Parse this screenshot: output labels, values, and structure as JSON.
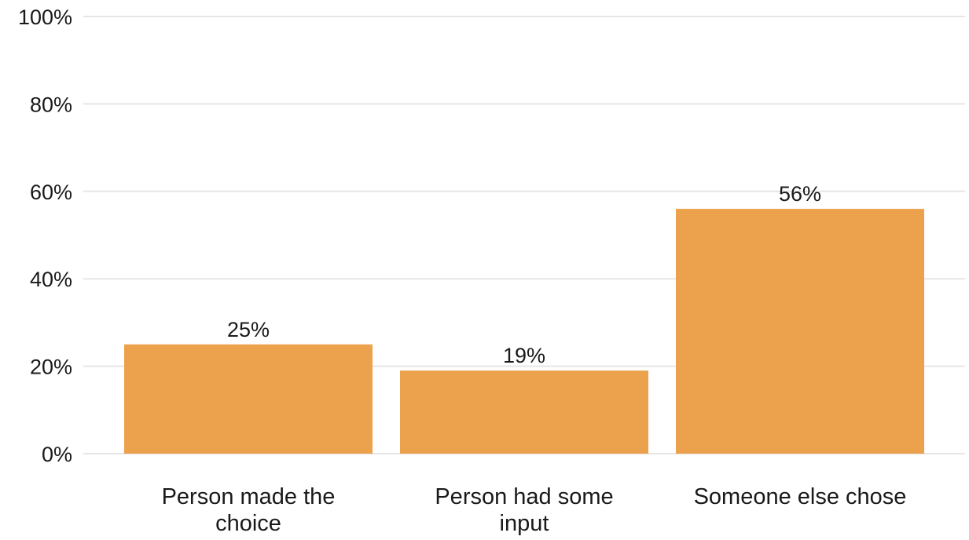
{
  "chart_data": {
    "type": "bar",
    "title": "",
    "xlabel": "",
    "ylabel": "",
    "categories": [
      "Person made the choice",
      "Person had some input",
      "Someone else chose"
    ],
    "category_lines": [
      [
        "Person made the",
        "choice"
      ],
      [
        "Person had some",
        "input"
      ],
      [
        "Someone else chose"
      ]
    ],
    "values": [
      25,
      19,
      56
    ],
    "value_labels": [
      "25%",
      "19%",
      "56%"
    ],
    "ylim": [
      0,
      100
    ],
    "yticks": [
      0,
      20,
      40,
      60,
      80,
      100
    ],
    "ytick_labels": [
      "0%",
      "20%",
      "40%",
      "60%",
      "80%",
      "100%"
    ],
    "grid": true,
    "legend": "none",
    "bar_color": "#eca14c",
    "grid_color": "#e6e6e6"
  }
}
